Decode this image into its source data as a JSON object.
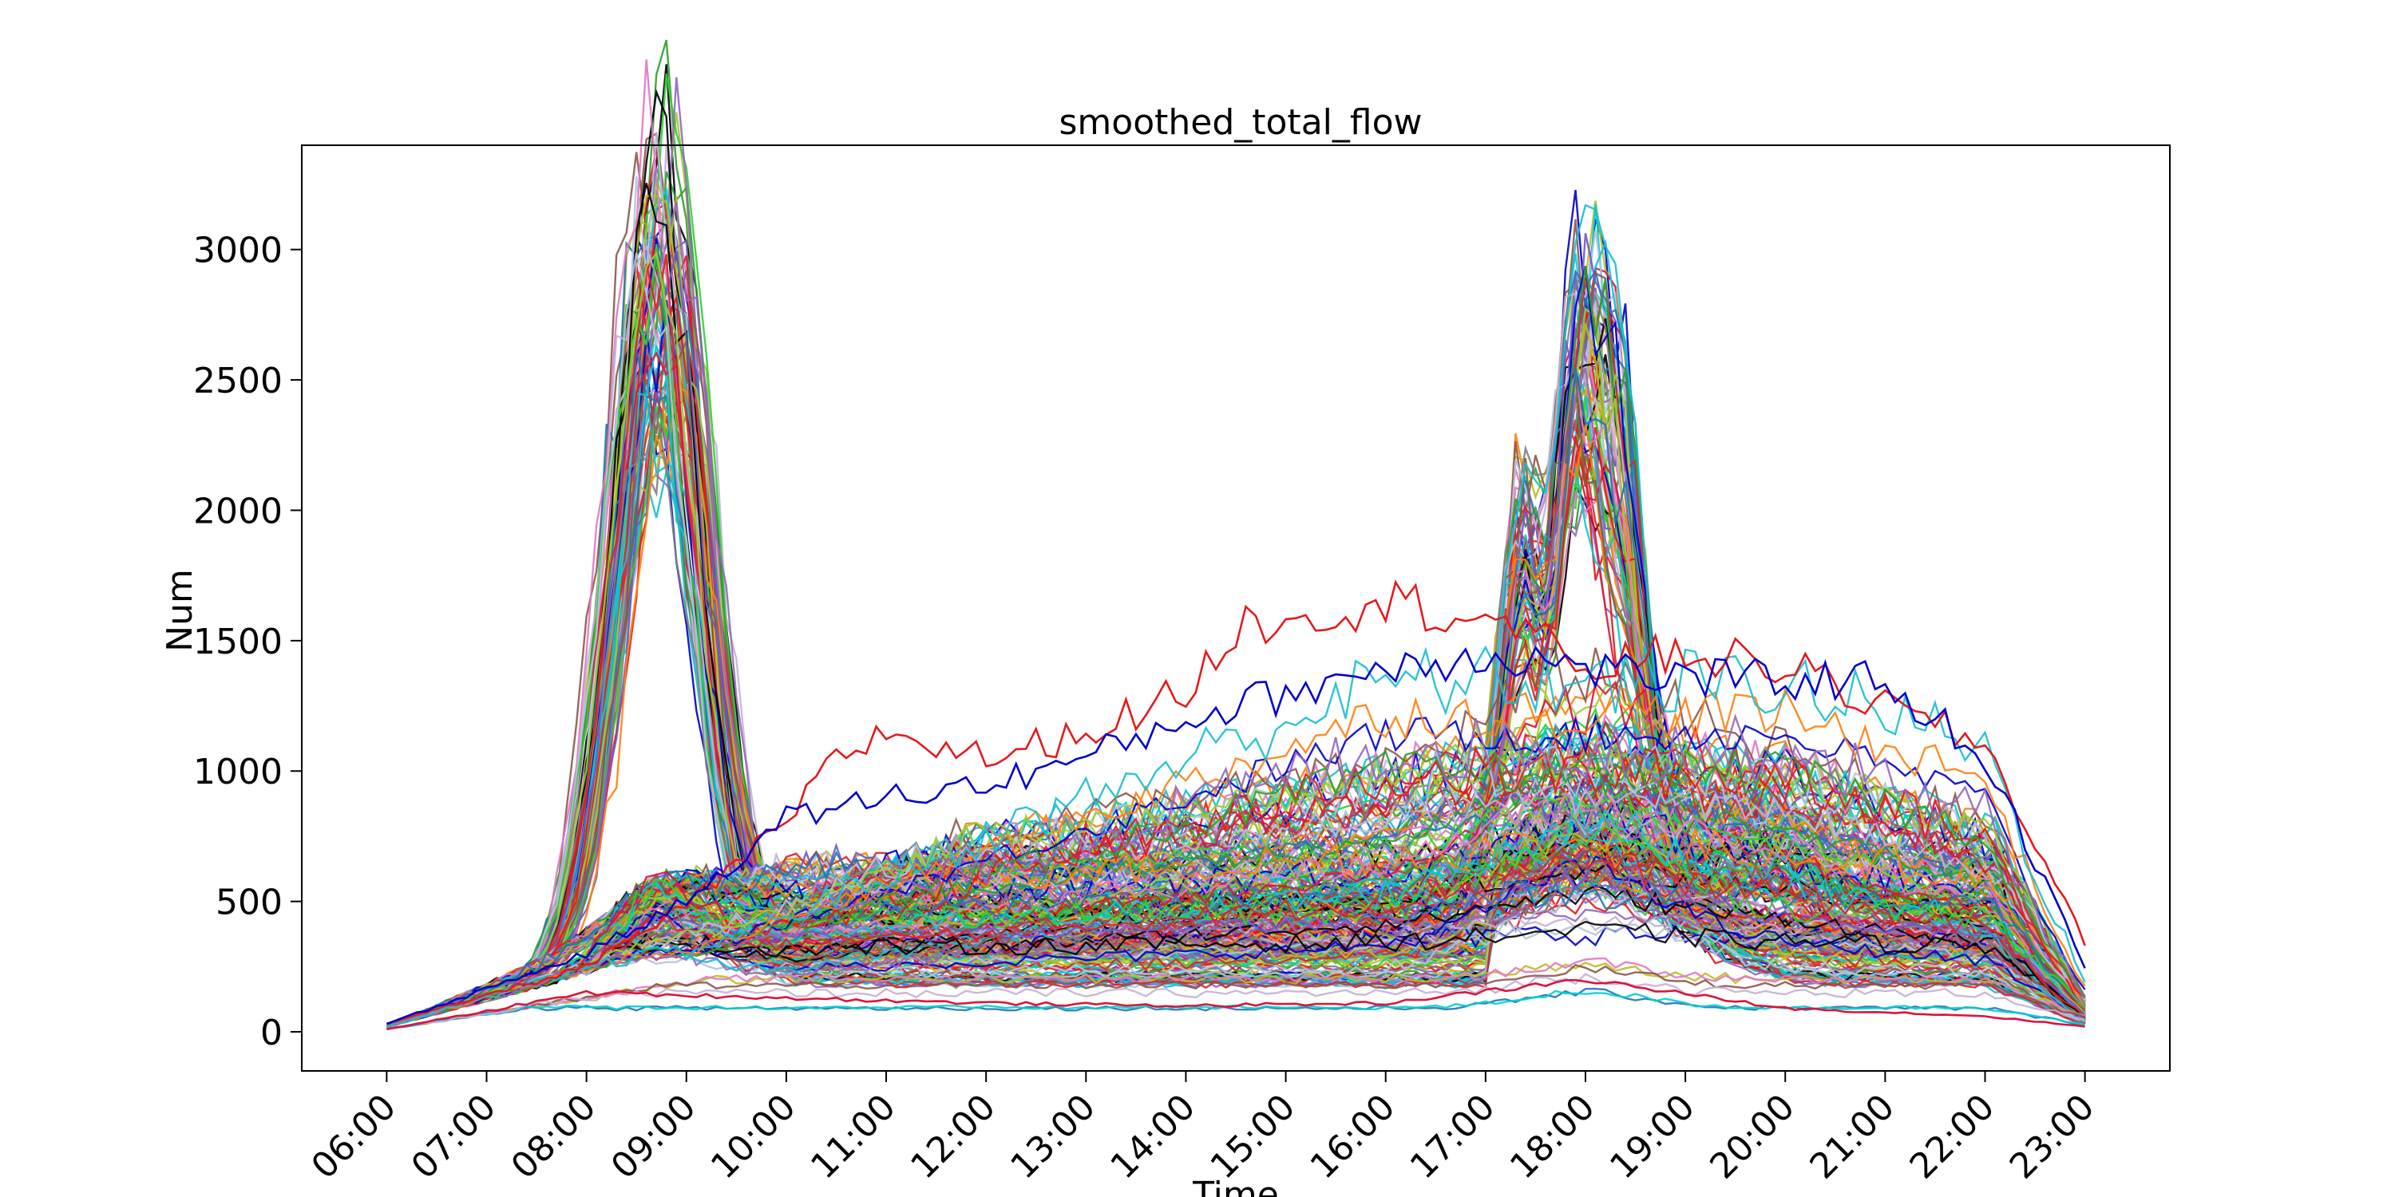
{
  "chart_data": {
    "type": "line",
    "title": "smoothed_total_flow",
    "xlabel": "Time",
    "ylabel": "Num",
    "x_ticks": [
      "06:00",
      "07:00",
      "08:00",
      "09:00",
      "10:00",
      "11:00",
      "12:00",
      "13:00",
      "14:00",
      "15:00",
      "16:00",
      "17:00",
      "18:00",
      "19:00",
      "20:00",
      "21:00",
      "22:00",
      "23:00"
    ],
    "x_range": [
      "05:09",
      "23:51"
    ],
    "ylim": [
      -150,
      3400
    ],
    "y_ticks": [
      0,
      500,
      1000,
      1500,
      2000,
      2500,
      3000
    ],
    "grid": false,
    "legend": "none",
    "palette": [
      "#e41a1c",
      "#0000cc",
      "#2ca02c",
      "#ff7f0e",
      "#9467bd",
      "#17becf",
      "#bcbd22",
      "#e377c2",
      "#8c564b",
      "#1f77b4",
      "#00ced1",
      "#c5b0d5",
      "#000000",
      "#dc143c",
      "#6a5acd",
      "#7f7f7f",
      "#32cd32",
      "#b0c4de",
      "#d62728",
      "#9acd32"
    ],
    "series_groups": [
      {
        "shape": "morning_peak",
        "count": 80
      },
      {
        "shape": "evening_peak",
        "count": 70
      },
      {
        "shape": "flat_daytime",
        "count": 90
      },
      {
        "shape": "rising_day",
        "count": 6
      },
      {
        "shape": "low_flat",
        "count": 6
      }
    ],
    "series": [
      {
        "shape": "flat_daytime",
        "color": "#e41a1c",
        "x": [
          "06:00",
          "08:00",
          "09:00",
          "10:00",
          "10:30",
          "11:00",
          "12:00",
          "13:00",
          "14:00",
          "14:30",
          "15:00",
          "16:00",
          "17:00",
          "18:00",
          "19:00",
          "20:00",
          "21:00",
          "22:00",
          "23:00"
        ],
        "y": [
          30,
          250,
          480,
          800,
          1050,
          1150,
          1050,
          1150,
          1300,
          1550,
          1600,
          1650,
          1600,
          1400,
          1450,
          1400,
          1250,
          1100,
          350
        ]
      },
      {
        "shape": "flat_daytime",
        "color": "#0000cc",
        "x": [
          "06:00",
          "08:00",
          "09:00",
          "10:00",
          "11:00",
          "12:00",
          "13:00",
          "14:00",
          "15:00",
          "16:00",
          "17:00",
          "18:00",
          "19:00",
          "20:00",
          "21:00",
          "22:00",
          "23:00"
        ],
        "y": [
          30,
          300,
          500,
          820,
          900,
          950,
          1050,
          1200,
          1300,
          1400,
          1450,
          1400,
          1350,
          1350,
          1350,
          1050,
          250
        ]
      },
      {
        "shape": "low_flat",
        "color": "#dc143c",
        "x": [
          "06:00",
          "08:00",
          "10:00",
          "12:00",
          "14:00",
          "16:00",
          "18:00",
          "20:00",
          "22:00",
          "23:00"
        ],
        "y": [
          10,
          150,
          130,
          110,
          100,
          110,
          200,
          90,
          60,
          20
        ]
      }
    ]
  }
}
